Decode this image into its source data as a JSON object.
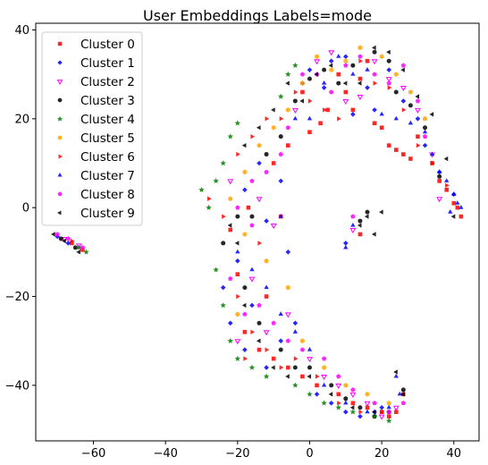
{
  "chart_data": {
    "type": "scatter",
    "title": "User Embeddings Labels=mode",
    "xlabel": "",
    "ylabel": "",
    "xlim": [
      -76,
      47
    ],
    "ylim": [
      -52.5,
      41.5
    ],
    "xticks": [
      -60,
      -40,
      -20,
      0,
      20,
      40
    ],
    "yticks": [
      -40,
      -20,
      0,
      20,
      40
    ],
    "xtick_labels": [
      "−60",
      "−40",
      "−20",
      "0",
      "20",
      "40"
    ],
    "ytick_labels": [
      "−40",
      "−20",
      "0",
      "20",
      "40"
    ],
    "grid": false,
    "legend_position": "top-left",
    "series": [
      {
        "name": "Cluster 0",
        "color": "#ff0000",
        "marker": "square",
        "points": [
          [
            -66,
            -8
          ],
          [
            -63,
            -9.5
          ],
          [
            -17,
            0
          ],
          [
            -10,
            10
          ],
          [
            -8,
            -2
          ],
          [
            -6,
            14
          ],
          [
            -2,
            26
          ],
          [
            0,
            17
          ],
          [
            3,
            19
          ],
          [
            5,
            22
          ],
          [
            8,
            30
          ],
          [
            10,
            26
          ],
          [
            12,
            22
          ],
          [
            14,
            29
          ],
          [
            16,
            33
          ],
          [
            18,
            19
          ],
          [
            20,
            18
          ],
          [
            22,
            14
          ],
          [
            24,
            13
          ],
          [
            26,
            12
          ],
          [
            28,
            11
          ],
          [
            30,
            16
          ],
          [
            34,
            10
          ],
          [
            36,
            6
          ],
          [
            38,
            4
          ],
          [
            40,
            1
          ],
          [
            41,
            0
          ],
          [
            42,
            -2
          ],
          [
            14,
            -6
          ],
          [
            -18,
            -28
          ],
          [
            -14,
            -32
          ],
          [
            -10,
            -34
          ],
          [
            -6,
            -36
          ],
          [
            -2,
            -38
          ],
          [
            2,
            -40
          ],
          [
            8,
            -42
          ],
          [
            12,
            -44
          ],
          [
            16,
            -45
          ],
          [
            20,
            -46
          ],
          [
            22,
            -47
          ],
          [
            24,
            -46
          ],
          [
            26,
            -42
          ],
          [
            -20,
            -15
          ],
          [
            -12,
            -20
          ],
          [
            -22,
            -5
          ]
        ]
      },
      {
        "name": "Cluster 1",
        "color": "#0000ff",
        "marker": "diamond",
        "points": [
          [
            -70,
            -6.5
          ],
          [
            -67,
            -8
          ],
          [
            -18,
            4
          ],
          [
            -14,
            10
          ],
          [
            -12,
            -3
          ],
          [
            -6,
            -10
          ],
          [
            -2,
            28
          ],
          [
            0,
            31
          ],
          [
            4,
            27
          ],
          [
            6,
            33
          ],
          [
            10,
            34
          ],
          [
            12,
            21
          ],
          [
            16,
            27
          ],
          [
            18,
            22
          ],
          [
            22,
            31
          ],
          [
            26,
            24
          ],
          [
            30,
            20
          ],
          [
            32,
            14
          ],
          [
            36,
            8
          ],
          [
            40,
            3
          ],
          [
            10,
            -8
          ],
          [
            -20,
            -12
          ],
          [
            -22,
            -26
          ],
          [
            -18,
            -32
          ],
          [
            -12,
            -36
          ],
          [
            -8,
            -30
          ],
          [
            -4,
            -26
          ],
          [
            2,
            -42
          ],
          [
            6,
            -44
          ],
          [
            10,
            -46
          ],
          [
            14,
            -47
          ],
          [
            18,
            -46
          ],
          [
            20,
            -45
          ],
          [
            -24,
            -18
          ],
          [
            -16,
            -22
          ],
          [
            -8,
            6
          ]
        ]
      },
      {
        "name": "Cluster 2",
        "color": "#ff00ff",
        "marker": "tri_down",
        "points": [
          [
            -68,
            -7
          ],
          [
            -64,
            -8.5
          ],
          [
            -14,
            2
          ],
          [
            -10,
            -4
          ],
          [
            -4,
            22
          ],
          [
            2,
            33
          ],
          [
            6,
            35
          ],
          [
            10,
            24
          ],
          [
            14,
            25
          ],
          [
            18,
            33
          ],
          [
            22,
            29
          ],
          [
            26,
            27
          ],
          [
            30,
            22
          ],
          [
            34,
            12
          ],
          [
            36,
            2
          ],
          [
            12,
            -5
          ],
          [
            -16,
            -16
          ],
          [
            -12,
            -28
          ],
          [
            -6,
            -24
          ],
          [
            0,
            -34
          ],
          [
            4,
            -38
          ],
          [
            8,
            -40
          ],
          [
            12,
            -42
          ],
          [
            16,
            -44
          ],
          [
            20,
            -47
          ],
          [
            24,
            -45
          ],
          [
            -20,
            -30
          ],
          [
            -22,
            6
          ]
        ]
      },
      {
        "name": "Cluster 3",
        "color": "#000000",
        "marker": "circle",
        "points": [
          [
            -69,
            -7
          ],
          [
            -65,
            -9
          ],
          [
            -16,
            -2
          ],
          [
            -12,
            12
          ],
          [
            -8,
            16
          ],
          [
            -4,
            24
          ],
          [
            0,
            29
          ],
          [
            4,
            31
          ],
          [
            8,
            28
          ],
          [
            12,
            32
          ],
          [
            18,
            35
          ],
          [
            22,
            33
          ],
          [
            24,
            26
          ],
          [
            28,
            23
          ],
          [
            32,
            18
          ],
          [
            36,
            7
          ],
          [
            16,
            -1
          ],
          [
            14,
            -3
          ],
          [
            -18,
            -18
          ],
          [
            -14,
            -26
          ],
          [
            -8,
            -32
          ],
          [
            -4,
            -36
          ],
          [
            0,
            -36
          ],
          [
            6,
            -40
          ],
          [
            10,
            -43
          ],
          [
            14,
            -45
          ],
          [
            18,
            -47
          ],
          [
            22,
            -46
          ],
          [
            26,
            -41
          ],
          [
            -20,
            -2
          ],
          [
            -24,
            -8
          ]
        ]
      },
      {
        "name": "Cluster 4",
        "color": "#007f00",
        "marker": "star",
        "points": [
          [
            -64,
            -9
          ],
          [
            -62,
            -10
          ],
          [
            -26,
            6
          ],
          [
            -24,
            10
          ],
          [
            -22,
            16
          ],
          [
            -20,
            19
          ],
          [
            -28,
            0
          ],
          [
            -30,
            4
          ],
          [
            -24,
            -22
          ],
          [
            -22,
            -30
          ],
          [
            -20,
            -34
          ],
          [
            -16,
            -36
          ],
          [
            -12,
            -38
          ],
          [
            -4,
            -40
          ],
          [
            0,
            -42
          ],
          [
            4,
            -44
          ],
          [
            8,
            -45
          ],
          [
            12,
            -46
          ],
          [
            18,
            -47
          ],
          [
            22,
            -48
          ],
          [
            -6,
            30
          ],
          [
            -4,
            32
          ],
          [
            -8,
            25
          ],
          [
            -26,
            -14
          ]
        ]
      },
      {
        "name": "Cluster 5",
        "color": "#ffa500",
        "marker": "hexagon",
        "points": [
          [
            -22,
            2
          ],
          [
            -18,
            8
          ],
          [
            -14,
            14
          ],
          [
            -10,
            18
          ],
          [
            -6,
            22
          ],
          [
            -2,
            28
          ],
          [
            2,
            34
          ],
          [
            6,
            31
          ],
          [
            10,
            33
          ],
          [
            14,
            36
          ],
          [
            20,
            34
          ],
          [
            24,
            30
          ],
          [
            28,
            26
          ],
          [
            32,
            20
          ],
          [
            -18,
            -6
          ],
          [
            -12,
            -12
          ],
          [
            -6,
            -18
          ],
          [
            -2,
            -30
          ],
          [
            4,
            -36
          ],
          [
            10,
            -40
          ],
          [
            16,
            -42
          ],
          [
            22,
            -44
          ],
          [
            -20,
            -24
          ]
        ]
      },
      {
        "name": "Cluster 6",
        "color": "#ff0000",
        "marker": "triangle_right",
        "points": [
          [
            -66,
            -7.5
          ],
          [
            -28,
            2
          ],
          [
            -24,
            -2
          ],
          [
            -20,
            12
          ],
          [
            -16,
            16
          ],
          [
            -12,
            20
          ],
          [
            -8,
            20
          ],
          [
            -4,
            26
          ],
          [
            0,
            24
          ],
          [
            4,
            22
          ],
          [
            8,
            20
          ],
          [
            14,
            33
          ],
          [
            18,
            28
          ],
          [
            22,
            27
          ],
          [
            26,
            22
          ],
          [
            30,
            14
          ],
          [
            34,
            10
          ],
          [
            38,
            5
          ],
          [
            -20,
            -20
          ],
          [
            -16,
            -28
          ],
          [
            -12,
            -32
          ],
          [
            -8,
            -36
          ],
          [
            -4,
            -34
          ],
          [
            2,
            -38
          ],
          [
            8,
            -44
          ],
          [
            14,
            -46
          ],
          [
            20,
            -46
          ],
          [
            -14,
            -8
          ],
          [
            -18,
            -34
          ]
        ]
      },
      {
        "name": "Cluster 7",
        "color": "#0000ff",
        "marker": "triangle_up",
        "points": [
          [
            -8,
            -2
          ],
          [
            -4,
            20
          ],
          [
            0,
            20
          ],
          [
            4,
            28
          ],
          [
            8,
            34
          ],
          [
            12,
            30
          ],
          [
            16,
            31
          ],
          [
            20,
            21
          ],
          [
            24,
            20
          ],
          [
            28,
            19
          ],
          [
            32,
            17
          ],
          [
            34,
            12
          ],
          [
            36,
            8
          ],
          [
            38,
            6
          ],
          [
            40,
            3
          ],
          [
            41,
            1
          ],
          [
            42,
            0
          ],
          [
            39,
            -1
          ],
          [
            12,
            -4
          ],
          [
            10,
            -9
          ],
          [
            -16,
            -14
          ],
          [
            -12,
            -18
          ],
          [
            -8,
            -24
          ],
          [
            -4,
            -28
          ],
          [
            0,
            -32
          ],
          [
            4,
            -40
          ],
          [
            10,
            -44
          ],
          [
            16,
            -46
          ],
          [
            22,
            -45
          ],
          [
            24,
            -38
          ],
          [
            25,
            -42
          ],
          [
            -20,
            -10
          ]
        ]
      },
      {
        "name": "Cluster 8",
        "color": "#ff00ff",
        "marker": "pentagon",
        "points": [
          [
            -70,
            -6
          ],
          [
            -67,
            -7
          ],
          [
            -63,
            -9
          ],
          [
            -20,
            0
          ],
          [
            -16,
            6
          ],
          [
            -12,
            8
          ],
          [
            -8,
            12
          ],
          [
            -6,
            18
          ],
          [
            -2,
            30
          ],
          [
            2,
            30
          ],
          [
            6,
            26
          ],
          [
            10,
            32
          ],
          [
            14,
            34
          ],
          [
            18,
            30
          ],
          [
            22,
            28
          ],
          [
            26,
            32
          ],
          [
            30,
            24
          ],
          [
            32,
            16
          ],
          [
            12,
            -2
          ],
          [
            -18,
            -24
          ],
          [
            -14,
            -22
          ],
          [
            -10,
            -26
          ],
          [
            -6,
            -30
          ],
          [
            -2,
            -32
          ],
          [
            4,
            -34
          ],
          [
            8,
            -38
          ],
          [
            12,
            -41
          ],
          [
            18,
            -44
          ],
          [
            22,
            -46
          ],
          [
            26,
            -44
          ],
          [
            -16,
            -4
          ],
          [
            -22,
            -16
          ]
        ]
      },
      {
        "name": "Cluster 9",
        "color": "#000000",
        "marker": "triangle_left",
        "points": [
          [
            -71,
            -6
          ],
          [
            -68,
            -7.5
          ],
          [
            -64,
            -10
          ],
          [
            -22,
            -4
          ],
          [
            -18,
            14
          ],
          [
            -14,
            18
          ],
          [
            -10,
            22
          ],
          [
            -6,
            28
          ],
          [
            -2,
            24
          ],
          [
            2,
            30
          ],
          [
            6,
            32
          ],
          [
            10,
            28
          ],
          [
            14,
            28
          ],
          [
            18,
            36
          ],
          [
            22,
            35
          ],
          [
            26,
            31
          ],
          [
            30,
            25
          ],
          [
            34,
            21
          ],
          [
            38,
            11
          ],
          [
            40,
            -2
          ],
          [
            14,
            -4
          ],
          [
            16,
            -2
          ],
          [
            20,
            -1
          ],
          [
            18,
            -6
          ],
          [
            -18,
            -22
          ],
          [
            -14,
            -30
          ],
          [
            -10,
            -36
          ],
          [
            -6,
            -38
          ],
          [
            0,
            -38
          ],
          [
            6,
            -42
          ],
          [
            12,
            -45
          ],
          [
            18,
            -46
          ],
          [
            24,
            -37
          ],
          [
            26,
            -42
          ],
          [
            -20,
            -8
          ]
        ]
      }
    ]
  }
}
